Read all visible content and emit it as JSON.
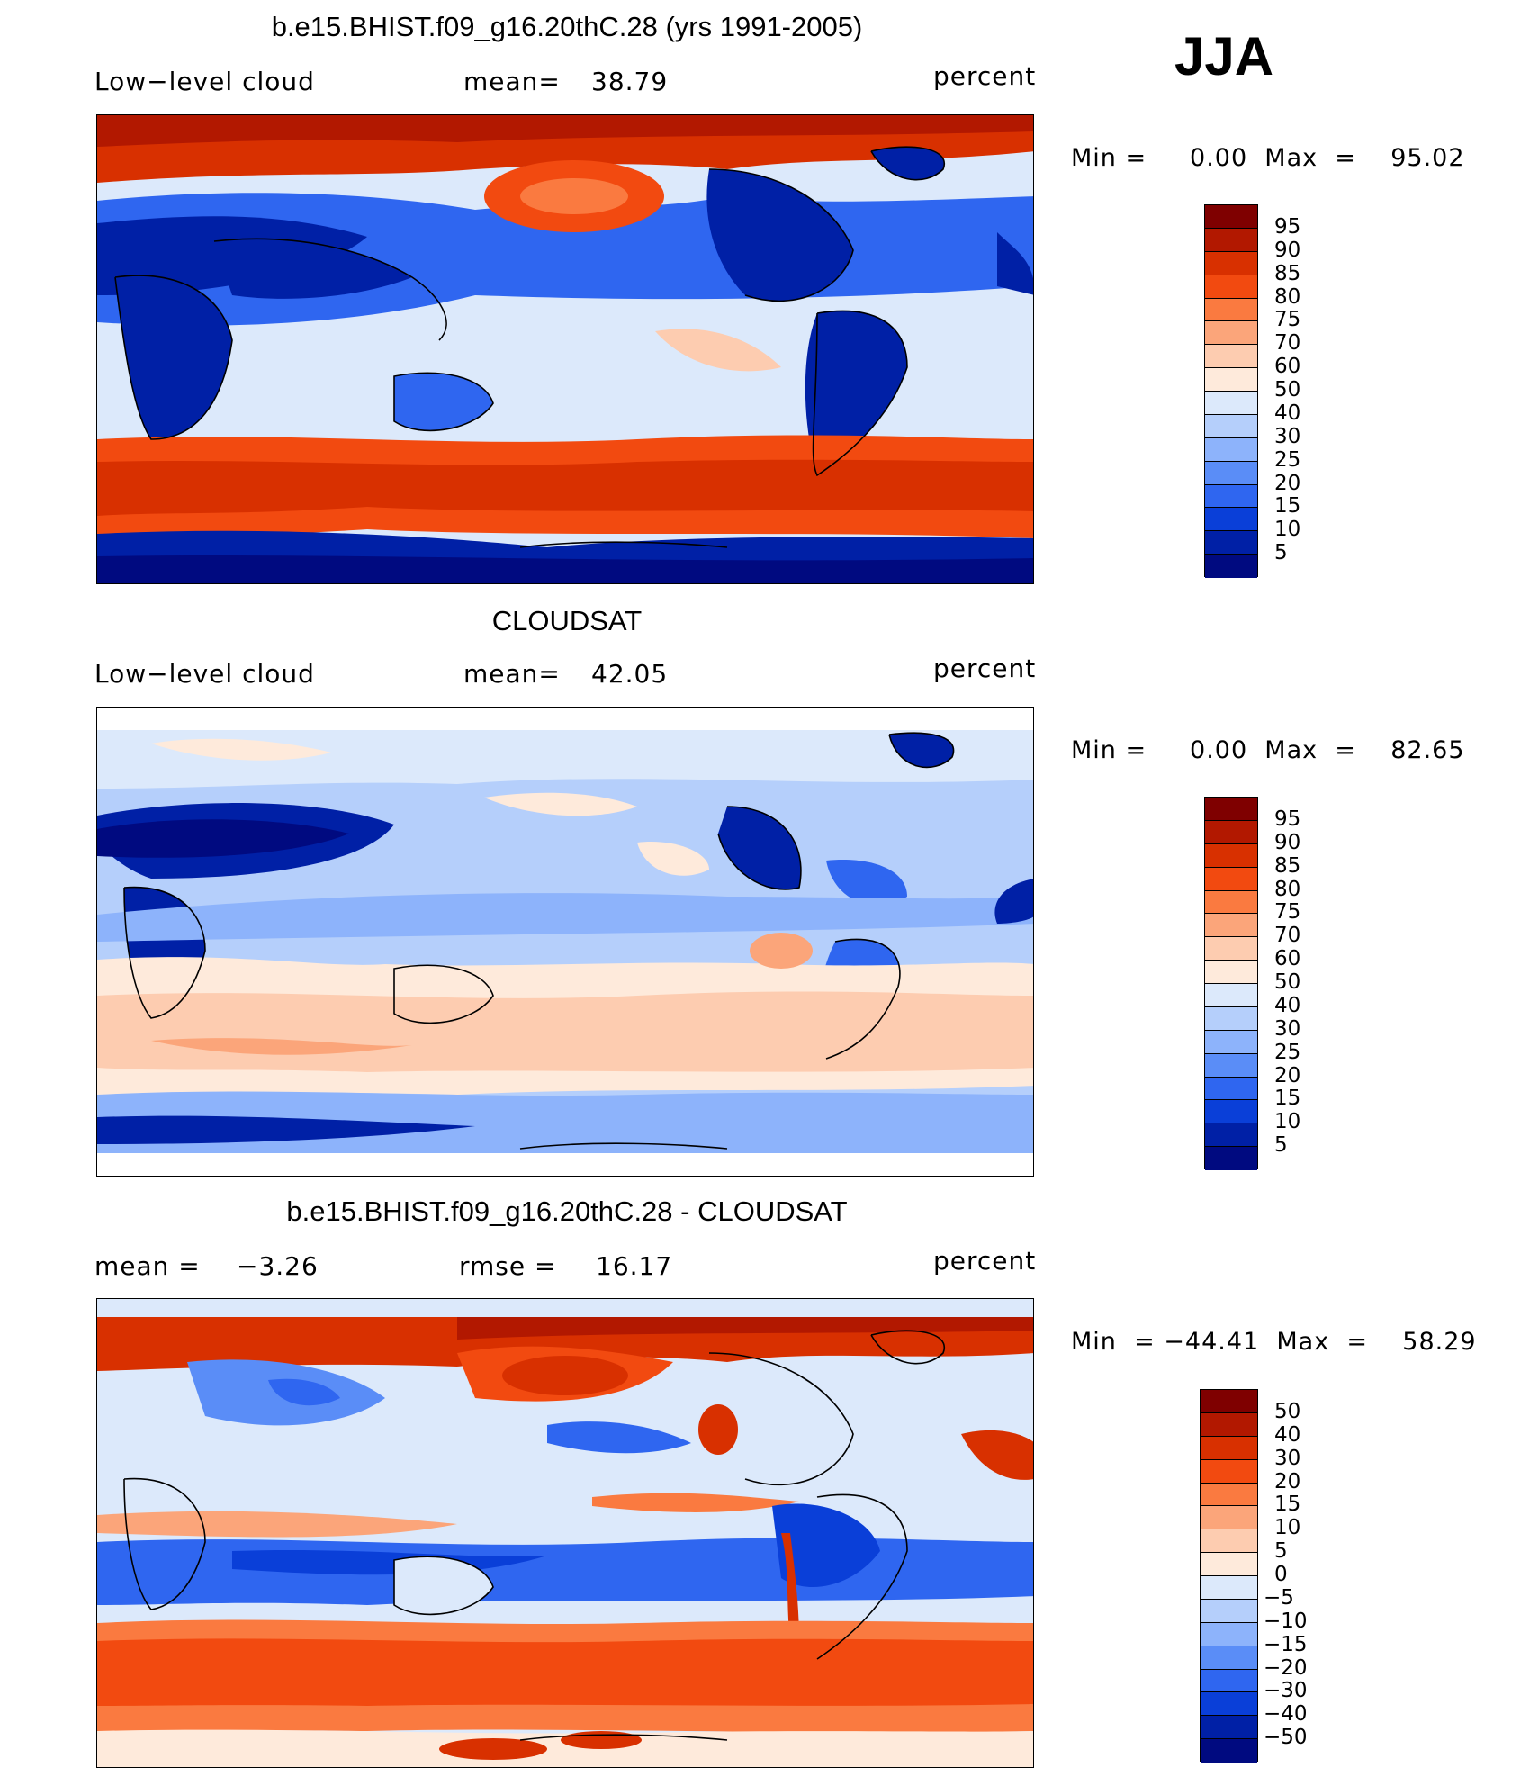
{
  "season": "JJA",
  "units": "percent",
  "panels": [
    {
      "title": "b.e15.BHIST.f09_g16.20thC.28 (yrs 1991-2005)",
      "variable": "Low−level cloud",
      "mean_label": "mean=",
      "mean_value": "38.79",
      "minmax": "Min =     0.00  Max  =    95.02",
      "colorbar": [
        "95",
        "90",
        "85",
        "80",
        "75",
        "70",
        "60",
        "50",
        "40",
        "30",
        "25",
        "20",
        "15",
        "10",
        "5"
      ]
    },
    {
      "title": "CLOUDSAT",
      "variable": "Low−level cloud",
      "mean_label": "mean=",
      "mean_value": "42.05",
      "minmax": "Min =     0.00  Max  =    82.65",
      "colorbar": [
        "95",
        "90",
        "85",
        "80",
        "75",
        "70",
        "60",
        "50",
        "40",
        "30",
        "25",
        "20",
        "15",
        "10",
        "5"
      ]
    },
    {
      "title": "b.e15.BHIST.f09_g16.20thC.28 - CLOUDSAT",
      "mean_label": "mean =",
      "mean_value": "−3.26",
      "rmse_label": "rmse =",
      "rmse_value": "16.17",
      "minmax": "Min  = −44.41  Max  =    58.29",
      "colorbar": [
        "50",
        "40",
        "30",
        "20",
        "15",
        "10",
        "5",
        "0",
        "−5",
        "−10",
        "−15",
        "−20",
        "−30",
        "−40",
        "−50"
      ]
    }
  ],
  "colormap": [
    "#7f0000",
    "#b21800",
    "#d83000",
    "#f24a10",
    "#fa7a40",
    "#fba57a",
    "#fdccb0",
    "#feeadb",
    "#dce9fb",
    "#b5cffb",
    "#8db3fb",
    "#5a8df7",
    "#2f66f0",
    "#0a3fd8",
    "#0020a6",
    "#000a80"
  ]
}
